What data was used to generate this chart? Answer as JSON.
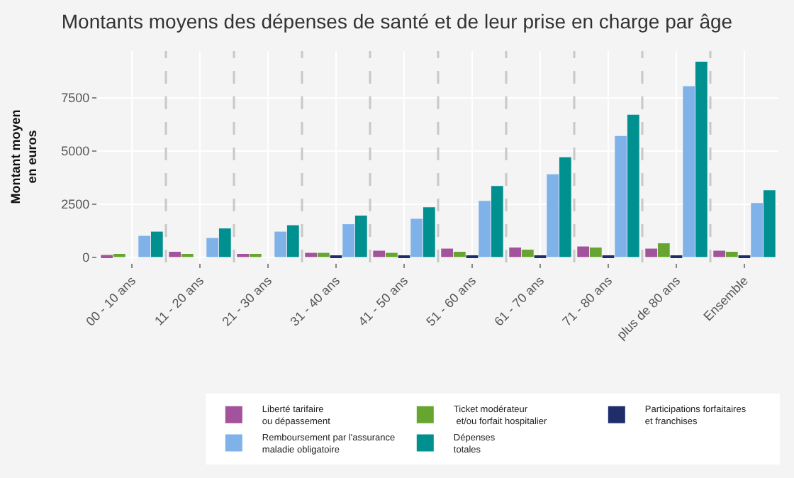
{
  "chart_data": {
    "type": "bar",
    "title": "Montants moyens des dépenses de santé et de leur prise en charge par âge",
    "ylabel": "Montant moyen\nen euros",
    "categories": [
      "00 - 10 ans",
      "11 - 20 ans",
      "21 - 30 ans",
      "31 - 40 ans",
      "41 - 50 ans",
      "51 - 60 ans",
      "61 - 70 ans",
      "71 - 80 ans",
      "plus de 80 ans",
      "Ensemble"
    ],
    "series": [
      {
        "name": "Liberté tarifaire\nou dépassement",
        "color": "#a3529c",
        "values": [
          100,
          250,
          150,
          200,
          300,
          400,
          450,
          500,
          400,
          300
        ]
      },
      {
        "name": "Ticket modérateur\n et/ou forfait hospitalier",
        "color": "#66a630",
        "values": [
          150,
          150,
          150,
          200,
          200,
          250,
          350,
          450,
          650,
          250
        ]
      },
      {
        "name": "Participations forfaitaires\net franchises",
        "color": "#1f2d6b",
        "values": [
          0,
          0,
          0,
          50,
          50,
          50,
          50,
          50,
          50,
          50
        ]
      },
      {
        "name": "Remboursement par l'assurance\nmaladie obligatoire",
        "color": "#7eb2e8",
        "values": [
          1000,
          900,
          1200,
          1550,
          1800,
          2650,
          3900,
          5700,
          8050,
          2550
        ]
      },
      {
        "name": "Dépenses\ntotales",
        "color": "#00908f",
        "values": [
          1200,
          1350,
          1500,
          1950,
          2350,
          3350,
          4700,
          6700,
          9200,
          3150
        ]
      }
    ],
    "ylim": [
      -250,
      9700
    ],
    "yticks": [
      0,
      2500,
      5000,
      7500
    ],
    "grid": true,
    "legend": "bottom"
  }
}
